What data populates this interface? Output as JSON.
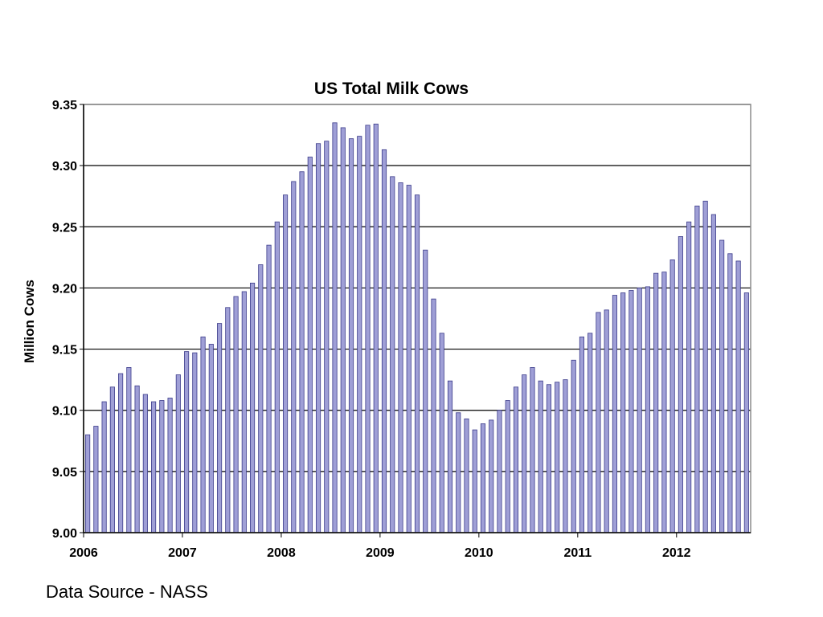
{
  "source_label": "Data Source - NASS",
  "colors": {
    "bar_fill": "#9f9fd6",
    "bar_stroke": "#3b3b8a",
    "grid": "#000000",
    "plot_border": "#8c8c8c"
  },
  "chart_data": {
    "type": "bar",
    "title": "US Total Milk Cows",
    "xlabel": "",
    "ylabel": "Million Cows",
    "ylim": [
      9.0,
      9.35
    ],
    "yticks": [
      "9.00",
      "9.05",
      "9.10",
      "9.15",
      "9.20",
      "9.25",
      "9.30",
      "9.35"
    ],
    "xticks": [
      "2006",
      "2007",
      "2008",
      "2009",
      "2010",
      "2011",
      "2012"
    ],
    "grid": true,
    "frequency": "monthly, Jan 2006 - Sep 2012",
    "values": [
      9.08,
      9.087,
      9.107,
      9.119,
      9.13,
      9.135,
      9.12,
      9.113,
      9.107,
      9.108,
      9.11,
      9.129,
      9.148,
      9.147,
      9.16,
      9.154,
      9.171,
      9.184,
      9.193,
      9.197,
      9.204,
      9.219,
      9.235,
      9.254,
      9.276,
      9.287,
      9.295,
      9.307,
      9.318,
      9.32,
      9.335,
      9.331,
      9.322,
      9.324,
      9.333,
      9.334,
      9.313,
      9.291,
      9.286,
      9.284,
      9.276,
      9.231,
      9.191,
      9.163,
      9.124,
      9.098,
      9.093,
      9.084,
      9.089,
      9.092,
      9.1,
      9.108,
      9.119,
      9.129,
      9.135,
      9.124,
      9.121,
      9.123,
      9.125,
      9.141,
      9.16,
      9.163,
      9.18,
      9.182,
      9.194,
      9.196,
      9.198,
      9.2,
      9.201,
      9.212,
      9.213,
      9.223,
      9.242,
      9.254,
      9.267,
      9.271,
      9.26,
      9.239,
      9.228,
      9.222,
      9.196
    ]
  }
}
